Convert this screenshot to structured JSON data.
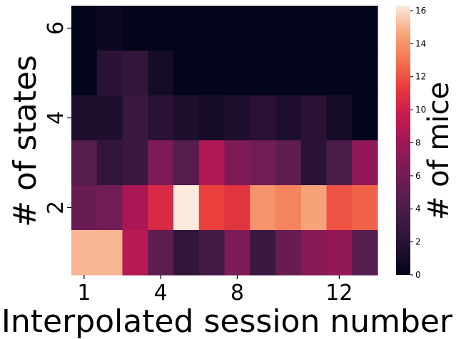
{
  "chart_data": {
    "type": "heatmap",
    "xlabel": "Interpolated session number",
    "ylabel": "# of states",
    "colorbar_label": "# of mice",
    "x_tick_labels": [
      "1",
      "4",
      "8",
      "12"
    ],
    "x_tick_columns": [
      1,
      4,
      7,
      11
    ],
    "y_tick_labels": [
      "2",
      "4",
      "6"
    ],
    "y_tick_rows": [
      2,
      4,
      6
    ],
    "colorbar_ticks": [
      "0",
      "2",
      "4",
      "6",
      "8",
      "10",
      "12",
      "14",
      "16"
    ],
    "colorbar_range": [
      0,
      16.3
    ],
    "colormap": "rocket",
    "n_columns": 12,
    "rows_top_to_bottom": [
      6,
      5,
      4,
      3,
      2,
      1
    ],
    "values": [
      [
        0,
        0.5,
        0,
        0,
        0,
        0,
        0,
        0,
        0,
        0,
        0,
        0
      ],
      [
        0,
        2,
        2.5,
        1,
        0,
        0,
        0,
        0,
        0,
        0,
        0,
        0
      ],
      [
        1.5,
        1.5,
        3,
        2,
        1.5,
        1,
        1.5,
        2,
        1.5,
        2,
        1,
        0
      ],
      [
        4.5,
        2.5,
        3,
        6.5,
        4.5,
        8.8,
        6.5,
        6,
        5,
        2,
        4,
        7.5
      ],
      [
        5.5,
        6,
        8.5,
        10.5,
        16.3,
        11.5,
        11,
        14,
        13.5,
        14.5,
        12,
        12.5
      ],
      [
        15,
        15,
        9,
        5,
        2.5,
        3.5,
        6.5,
        3,
        5.5,
        7,
        7.5,
        4.5
      ]
    ]
  }
}
